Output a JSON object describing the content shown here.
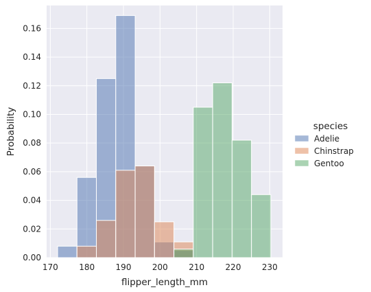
{
  "chart_data": {
    "type": "bar",
    "xlabel": "flipper_length_mm",
    "ylabel": "Probability",
    "xlim": [
      169,
      233.5
    ],
    "ylim": [
      0,
      0.176
    ],
    "xticks": [
      170,
      180,
      190,
      200,
      210,
      220,
      230
    ],
    "yticks": [
      0.0,
      0.02,
      0.04,
      0.06,
      0.08,
      0.1,
      0.12,
      0.14,
      0.16
    ],
    "ytick_labels": [
      "0.00",
      "0.02",
      "0.04",
      "0.06",
      "0.08",
      "0.10",
      "0.12",
      "0.14",
      "0.16"
    ],
    "grid": true,
    "legend_position": "right",
    "legend_title": "species",
    "bin_edges": [
      172.0,
      177.3,
      182.6,
      187.9,
      193.2,
      198.5,
      203.8,
      209.1,
      214.4,
      219.7,
      225.0,
      230.3
    ],
    "series": [
      {
        "name": "Adelie",
        "color": "#4c72b0",
        "values": [
          0.008,
          0.056,
          0.125,
          0.169,
          0.064,
          0.011,
          0.005,
          0,
          0,
          0,
          0
        ]
      },
      {
        "name": "Chinstrap",
        "color": "#dd8452",
        "values": [
          0,
          0.008,
          0.026,
          0.061,
          0.064,
          0.025,
          0.011,
          0,
          0,
          0,
          0
        ]
      },
      {
        "name": "Gentoo",
        "color": "#55a868",
        "values": [
          0,
          0,
          0,
          0,
          0,
          0,
          0.006,
          0.105,
          0.122,
          0.082,
          0.044
        ]
      }
    ]
  }
}
